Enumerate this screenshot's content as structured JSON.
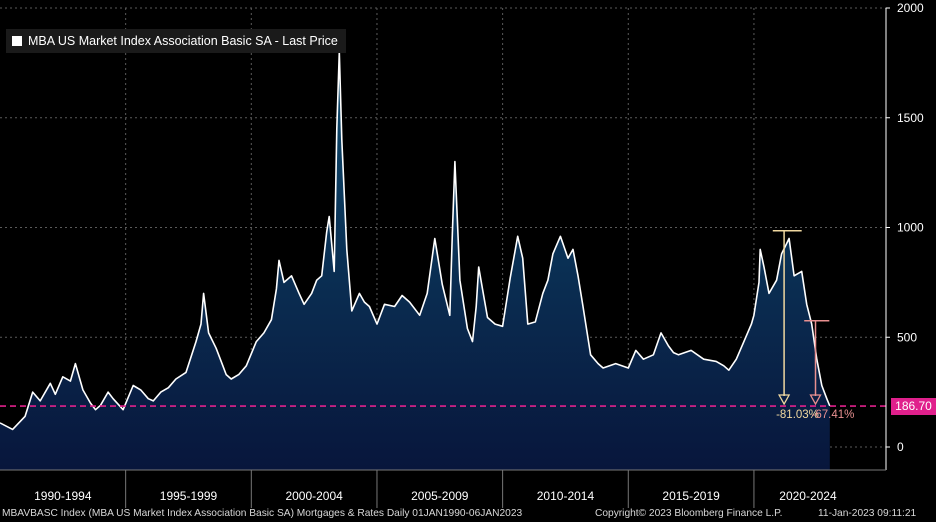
{
  "legend": {
    "label": "MBA US Market Index Association Basic SA - Last Price"
  },
  "footer": {
    "left": "MBAVBASC Index (MBA US Market Index Association Basic SA) Mortgages & Rates  Daily 01JAN1990-06JAN2023",
    "copyright": "Copyright© 2023 Bloomberg Finance L.P.",
    "timestamp": "11-Jan-2023 09:11:21"
  },
  "last_value_label": "186.70",
  "annotations": {
    "drop_from_peak": "-81.03%",
    "drop_recent": "-67.41%"
  },
  "colors": {
    "line": "#ffffff",
    "fill_top": "#0d3a5c",
    "fill_bottom": "#081a40",
    "last_line": "#e0208c",
    "ann1": "#f0d8a0",
    "ann2": "#e89090",
    "grid": "#5a5a5a",
    "axis": "#ffffff"
  },
  "chart_data": {
    "type": "area",
    "title": "MBA US Market Index Association Basic SA - Last Price",
    "xlabel": "",
    "ylabel": "",
    "ylim": [
      -100,
      2000
    ],
    "xlim": [
      1990.0,
      2024.3
    ],
    "y_ticks": [
      0,
      500,
      1000,
      1500,
      2000
    ],
    "x_tick_labels": [
      "1990-1994",
      "1995-1999",
      "2000-2004",
      "2005-2009",
      "2010-2014",
      "2015-2019",
      "2020-2024"
    ],
    "x_tick_ranges": [
      [
        1990,
        1995
      ],
      [
        1995,
        2000
      ],
      [
        2000,
        2005
      ],
      [
        2005,
        2010
      ],
      [
        2010,
        2015
      ],
      [
        2015,
        2020
      ],
      [
        2020,
        2025
      ]
    ],
    "grid": true,
    "legend_position": "top-left",
    "last_value": 186.7,
    "series": [
      {
        "name": "MBA US Market Index Association Basic SA - Last Price",
        "x": [
          1990.0,
          1990.5,
          1991.0,
          1991.3,
          1991.6,
          1992.0,
          1992.2,
          1992.5,
          1992.8,
          1993.0,
          1993.3,
          1993.6,
          1993.8,
          1994.0,
          1994.3,
          1994.5,
          1994.9,
          1995.3,
          1995.6,
          1995.9,
          1996.1,
          1996.4,
          1996.7,
          1997.0,
          1997.4,
          1997.8,
          1998.0,
          1998.1,
          1998.3,
          1998.6,
          1998.8,
          1999.0,
          1999.2,
          1999.5,
          1999.8,
          2000.2,
          2000.5,
          2000.8,
          2001.0,
          2001.1,
          2001.3,
          2001.6,
          2001.9,
          2002.1,
          2002.4,
          2002.6,
          2002.8,
          2003.0,
          2003.1,
          2003.3,
          2003.4,
          2003.5,
          2003.6,
          2003.8,
          2004.0,
          2004.3,
          2004.5,
          2004.7,
          2005.0,
          2005.3,
          2005.7,
          2006.0,
          2006.3,
          2006.7,
          2007.0,
          2007.3,
          2007.6,
          2007.9,
          2008.0,
          2008.1,
          2008.3,
          2008.6,
          2008.8,
          2008.95,
          2009.05,
          2009.2,
          2009.4,
          2009.7,
          2010.0,
          2010.3,
          2010.6,
          2010.8,
          2011.0,
          2011.3,
          2011.6,
          2011.8,
          2012.0,
          2012.3,
          2012.6,
          2012.8,
          2013.0,
          2013.2,
          2013.5,
          2013.8,
          2014.0,
          2014.5,
          2015.0,
          2015.3,
          2015.6,
          2016.0,
          2016.3,
          2016.6,
          2016.8,
          2017.0,
          2017.5,
          2018.0,
          2018.5,
          2018.8,
          2019.0,
          2019.3,
          2019.6,
          2019.9,
          2020.0,
          2020.2,
          2020.25,
          2020.4,
          2020.6,
          2020.9,
          2021.1,
          2021.4,
          2021.6,
          2021.9,
          2022.1,
          2022.3,
          2022.5,
          2022.7,
          2022.9,
          2023.02
        ],
        "values": [
          110,
          80,
          140,
          250,
          210,
          290,
          240,
          320,
          300,
          380,
          260,
          200,
          170,
          190,
          250,
          220,
          170,
          280,
          260,
          220,
          210,
          250,
          270,
          310,
          340,
          480,
          560,
          700,
          520,
          450,
          390,
          330,
          310,
          330,
          370,
          480,
          520,
          580,
          720,
          850,
          750,
          780,
          700,
          650,
          700,
          760,
          780,
          980,
          1050,
          800,
          1450,
          1800,
          1400,
          900,
          620,
          700,
          660,
          640,
          560,
          650,
          640,
          690,
          660,
          600,
          700,
          950,
          740,
          600,
          980,
          1300,
          760,
          540,
          480,
          640,
          820,
          720,
          590,
          560,
          550,
          770,
          960,
          860,
          560,
          570,
          700,
          760,
          880,
          960,
          860,
          900,
          780,
          640,
          420,
          380,
          360,
          380,
          360,
          440,
          400,
          420,
          520,
          460,
          430,
          420,
          440,
          400,
          390,
          370,
          350,
          400,
          480,
          560,
          600,
          750,
          900,
          820,
          700,
          760,
          880,
          950,
          780,
          800,
          650,
          560,
          400,
          280,
          220,
          186.7
        ]
      }
    ]
  }
}
